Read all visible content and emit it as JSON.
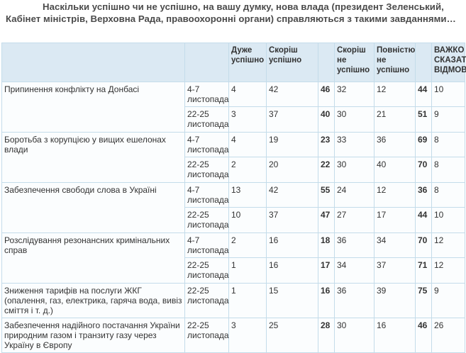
{
  "heading": "Наскільки успішно чи не успішно, на вашу думку, нова влада (президент Зеленський, Кабінет міністрів, Верховна Рада, правоохоронні органи) справляються з такими завданнями…",
  "columns": [
    "",
    "",
    "Дуже успішно",
    "Скоріш успішно",
    "",
    "Скоріш не успішно",
    "Повністю не успішно",
    "",
    "ВАЖКО СКАЗАТИ/ ВІДМОВА"
  ],
  "groups": [
    {
      "task": "Припинення конфлікту на Донбасі",
      "rows": [
        {
          "period": "4-7 листопада",
          "very": "4",
          "rather": "42",
          "sum_pos": "46",
          "rather_not": "32",
          "not_at_all": "12",
          "sum_neg": "44",
          "hard": "10"
        },
        {
          "period": "22-25 листопада",
          "very": "3",
          "rather": "37",
          "sum_pos": "40",
          "rather_not": "30",
          "not_at_all": "21",
          "sum_neg": "51",
          "hard": "9"
        }
      ]
    },
    {
      "task": "Боротьба з корупцією у вищих ешелонах влади",
      "rows": [
        {
          "period": "4-7 листопада",
          "very": "4",
          "rather": "19",
          "sum_pos": "23",
          "rather_not": "33",
          "not_at_all": "36",
          "sum_neg": "69",
          "hard": "8"
        },
        {
          "period": "22-25 листопада",
          "very": "2",
          "rather": "20",
          "sum_pos": "22",
          "rather_not": "30",
          "not_at_all": "40",
          "sum_neg": "70",
          "hard": "8"
        }
      ]
    },
    {
      "task": "Забезпечення свободи слова в Україні",
      "rows": [
        {
          "period": "4-7 листопада",
          "very": "13",
          "rather": "42",
          "sum_pos": "55",
          "rather_not": "24",
          "not_at_all": "12",
          "sum_neg": "36",
          "hard": "8"
        },
        {
          "period": "22-25 листопада",
          "very": "10",
          "rather": "37",
          "sum_pos": "47",
          "rather_not": "27",
          "not_at_all": "17",
          "sum_neg": "44",
          "hard": "10"
        }
      ]
    },
    {
      "task": "Розслідування резонансних кримінальних справ",
      "rows": [
        {
          "period": "4-7 листопада",
          "very": "2",
          "rather": "16",
          "sum_pos": "18",
          "rather_not": "36",
          "not_at_all": "34",
          "sum_neg": "70",
          "hard": "12"
        },
        {
          "period": "22-25 листопада",
          "very": "1",
          "rather": "16",
          "sum_pos": "17",
          "rather_not": "34",
          "not_at_all": "37",
          "sum_neg": "71",
          "hard": "12"
        }
      ]
    },
    {
      "task": "Зниження тарифів на послуги ЖКГ (опалення, газ, електрика, гаряча вода, вивіз сміття і т. д.)",
      "rows": [
        {
          "period": "22-25 листопада",
          "very": "1",
          "rather": "15",
          "sum_pos": "16",
          "rather_not": "36",
          "not_at_all": "39",
          "sum_neg": "75",
          "hard": "9"
        }
      ]
    },
    {
      "task": "Забезпечення надійного постачання України природним газом і транзиту газу через Україну в Європу",
      "rows": [
        {
          "period": "22-25 листопада",
          "very": "3",
          "rather": "25",
          "sum_pos": "28",
          "rather_not": "30",
          "not_at_all": "16",
          "sum_neg": "46",
          "hard": "26"
        }
      ]
    }
  ]
}
